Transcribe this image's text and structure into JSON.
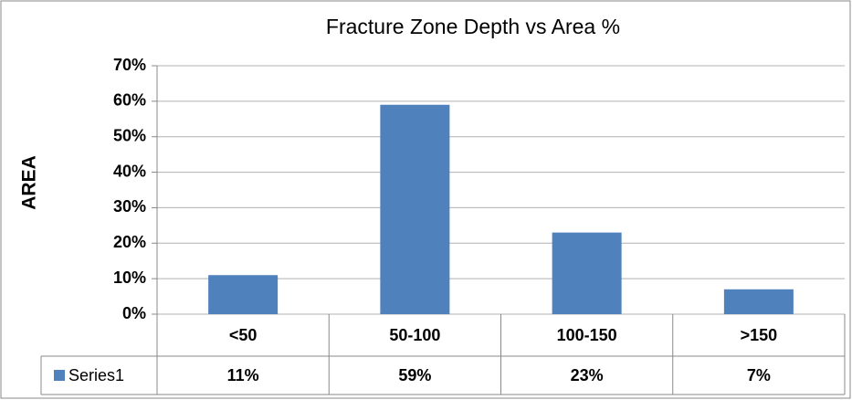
{
  "chart_data": {
    "type": "bar",
    "title": "Fracture Zone Depth vs Area %",
    "ylabel": "AREA",
    "categories": [
      "<50",
      "50-100",
      "100-150",
      ">150"
    ],
    "series": [
      {
        "name": "Series1",
        "color": "#4f81bd",
        "values": [
          11,
          59,
          23,
          7
        ],
        "value_labels": [
          "11%",
          "59%",
          "23%",
          "7%"
        ]
      }
    ],
    "ylim": [
      0,
      70
    ],
    "yticks": [
      {
        "value": 0,
        "label": "0%"
      },
      {
        "value": 10,
        "label": "10%"
      },
      {
        "value": 20,
        "label": "20%"
      },
      {
        "value": 30,
        "label": "30%"
      },
      {
        "value": 40,
        "label": "40%"
      },
      {
        "value": 50,
        "label": "50%"
      },
      {
        "value": 60,
        "label": "60%"
      },
      {
        "value": 70,
        "label": "70%"
      }
    ],
    "grid": true
  }
}
